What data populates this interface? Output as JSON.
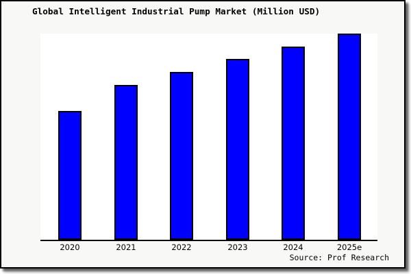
{
  "header": {
    "title": "Global Intelligent Industrial Pump Market (Million USD)"
  },
  "footer": {
    "source": "Source: Prof Research"
  },
  "colors": {
    "bar_fill": "#0000ff",
    "bar_edge": "#000000",
    "figure_background": "#f8f8f7",
    "plot_background": "#ffffff",
    "axis_line": "#000000"
  },
  "chart_data": {
    "type": "bar",
    "title": "Global Intelligent Industrial Pump Market (Million USD)",
    "categories": [
      "2020",
      "2021",
      "2022",
      "2023",
      "2024",
      "2025e"
    ],
    "values_relative_to_max_pct": [
      62.6,
      75.2,
      81.5,
      87.7,
      93.7,
      100
    ],
    "xlabel": "",
    "ylabel": "",
    "y_axis_tick_labels_visible": false,
    "grid": false,
    "legend": "none",
    "source": "Source: Prof Research"
  }
}
